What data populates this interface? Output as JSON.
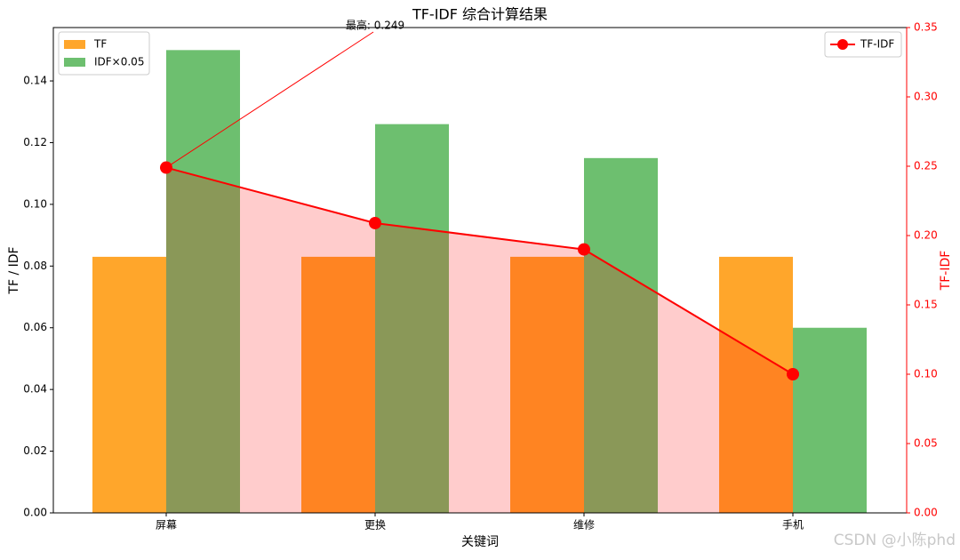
{
  "chart_data": {
    "type": "bar",
    "title": "TF-IDF 综合计算结果",
    "x_label": "关键词",
    "y_label": "TF / IDF",
    "y2_label": "TF-IDF",
    "categories": [
      "屏幕",
      "更换",
      "维修",
      "手机"
    ],
    "series": [
      {
        "name": "TF",
        "color": "#ffa62b",
        "values": [
          0.083,
          0.083,
          0.083,
          0.083
        ]
      },
      {
        "name": "IDF×0.05",
        "color": "#6dbf6f",
        "values": [
          0.15,
          0.126,
          0.115,
          0.06
        ]
      },
      {
        "name": "TF-IDF",
        "color": "#ff0000",
        "type": "line",
        "axis": "y2",
        "fill_color": "rgba(255,0,0,0.2)",
        "values": [
          0.249,
          0.209,
          0.19,
          0.1
        ]
      }
    ],
    "ylim": [
      0,
      0.1573
    ],
    "yticks": [
      {
        "value": 0,
        "label": "0.00"
      },
      {
        "value": 0.02,
        "label": "0.02"
      },
      {
        "value": 0.04,
        "label": "0.04"
      },
      {
        "value": 0.06,
        "label": "0.06"
      },
      {
        "value": 0.08,
        "label": "0.08"
      },
      {
        "value": 0.1,
        "label": "0.10"
      },
      {
        "value": 0.12,
        "label": "0.12"
      },
      {
        "value": 0.14,
        "label": "0.14"
      }
    ],
    "y2lim": [
      0,
      0.35
    ],
    "y2ticks": [
      {
        "value": 0,
        "label": "0.00"
      },
      {
        "value": 0.05,
        "label": "0.05"
      },
      {
        "value": 0.1,
        "label": "0.10"
      },
      {
        "value": 0.15,
        "label": "0.15"
      },
      {
        "value": 0.2,
        "label": "0.20"
      },
      {
        "value": 0.25,
        "label": "0.25"
      },
      {
        "value": 0.3,
        "label": "0.30"
      },
      {
        "value": 0.35,
        "label": "0.35"
      }
    ],
    "y2_color": "#ff0000",
    "legend_loc": "upper left",
    "legend2_loc": "upper right",
    "annotation": {
      "text": "最高: 0.249",
      "series": 2,
      "index": 0
    },
    "watermark": "CSDN @小陈phd"
  }
}
